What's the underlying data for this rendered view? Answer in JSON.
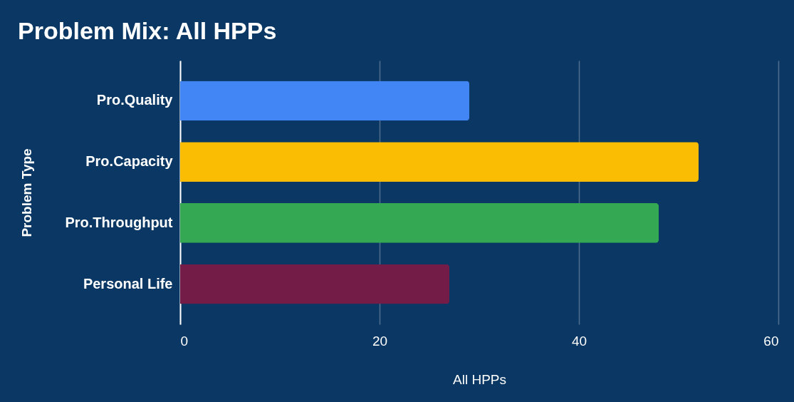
{
  "chart_data": {
    "type": "bar",
    "orientation": "horizontal",
    "title": "Problem Mix: All HPPs",
    "xlabel": "All HPPs",
    "ylabel": "Problem Type",
    "categories": [
      "Pro.Quality",
      "Pro.Capacity",
      "Pro.Throughput",
      "Personal Life"
    ],
    "values": [
      29,
      52,
      48,
      27
    ],
    "colors": [
      "#4285f4",
      "#fbbc04",
      "#34a853",
      "#721c47"
    ],
    "xlim": [
      0,
      60
    ],
    "xticks": [
      0,
      20,
      40,
      60
    ],
    "grid": "x"
  }
}
